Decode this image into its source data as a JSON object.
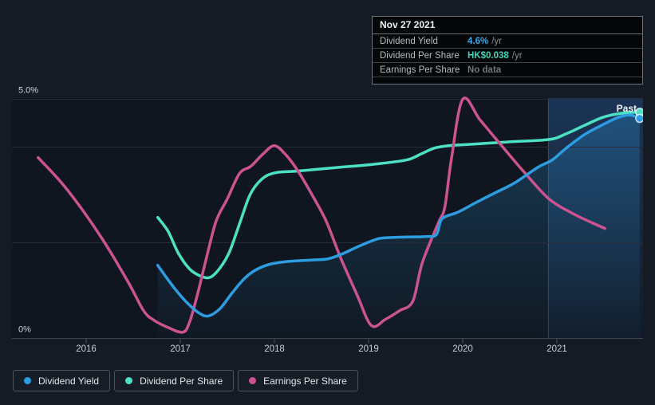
{
  "tooltip": {
    "date": "Nov 27 2021",
    "rows": [
      {
        "label": "Dividend Yield",
        "value": "4.6%",
        "suffix": "/yr",
        "value_color": "#3ba9ea"
      },
      {
        "label": "Dividend Per Share",
        "value": "HK$0.038",
        "suffix": "/yr",
        "value_color": "#40d6b9"
      },
      {
        "label": "Earnings Per Share",
        "value": "No data",
        "suffix": "",
        "value_color": "#70767d"
      }
    ]
  },
  "legend": [
    {
      "label": "Dividend Yield",
      "color": "#2d9de2"
    },
    {
      "label": "Dividend Per Share",
      "color": "#4de1c3"
    },
    {
      "label": "Earnings Per Share",
      "color": "#ca5390"
    }
  ],
  "colors": {
    "background": "#151b24",
    "plot_background": "#10161f",
    "gridline": "#262d38",
    "baseline": "#3d4450",
    "dividend_yield": "#2d9de2",
    "dividend_per_share": "#4de1c3",
    "earnings_per_share": "#ca5390",
    "past_band": "#2c64aa"
  },
  "chart_data": {
    "type": "line",
    "title": "",
    "x_axis": {
      "ticks": [
        2016,
        2017,
        2018,
        2019,
        2020,
        2021
      ],
      "min": 2015.21,
      "max": 2021.92
    },
    "y_axis": {
      "labels": [
        {
          "text": "5.0%",
          "pct": 5.0
        },
        {
          "text": "0%",
          "pct": 0.0
        }
      ],
      "gridlines_pct": [
        5.0,
        4.0,
        2.0
      ],
      "baseline_pct": 0.0,
      "ylim": [
        0,
        5.0
      ]
    },
    "past_band": {
      "from_year": 2020.91,
      "label": "Past"
    },
    "legend_position": "bottom-left",
    "series": [
      {
        "name": "Dividend Per Share",
        "color": "#4de1c3",
        "end_dot": true,
        "area_fill": false,
        "points": [
          [
            2016.76,
            2.53
          ],
          [
            2016.87,
            2.24
          ],
          [
            2016.98,
            1.78
          ],
          [
            2017.1,
            1.45
          ],
          [
            2017.22,
            1.3
          ],
          [
            2017.32,
            1.28
          ],
          [
            2017.42,
            1.47
          ],
          [
            2017.52,
            1.8
          ],
          [
            2017.63,
            2.4
          ],
          [
            2017.74,
            3.0
          ],
          [
            2017.86,
            3.32
          ],
          [
            2018.0,
            3.46
          ],
          [
            2018.25,
            3.5
          ],
          [
            2018.65,
            3.57
          ],
          [
            2019.05,
            3.64
          ],
          [
            2019.4,
            3.73
          ],
          [
            2019.55,
            3.85
          ],
          [
            2019.7,
            3.98
          ],
          [
            2019.85,
            4.03
          ],
          [
            2020.1,
            4.06
          ],
          [
            2020.5,
            4.11
          ],
          [
            2020.92,
            4.16
          ],
          [
            2021.1,
            4.28
          ],
          [
            2021.3,
            4.46
          ],
          [
            2021.5,
            4.63
          ],
          [
            2021.7,
            4.71
          ],
          [
            2021.88,
            4.73
          ]
        ]
      },
      {
        "name": "Earnings Per Share",
        "color": "#ca5390",
        "end_dot": false,
        "area_fill": false,
        "points": [
          [
            2015.49,
            3.78
          ],
          [
            2015.74,
            3.25
          ],
          [
            2015.97,
            2.66
          ],
          [
            2016.21,
            1.96
          ],
          [
            2016.46,
            1.13
          ],
          [
            2016.61,
            0.58
          ],
          [
            2016.72,
            0.38
          ],
          [
            2016.88,
            0.22
          ],
          [
            2017.03,
            0.13
          ],
          [
            2017.1,
            0.35
          ],
          [
            2017.18,
            0.9
          ],
          [
            2017.28,
            1.7
          ],
          [
            2017.38,
            2.45
          ],
          [
            2017.5,
            2.92
          ],
          [
            2017.63,
            3.45
          ],
          [
            2017.75,
            3.6
          ],
          [
            2017.88,
            3.86
          ],
          [
            2018.0,
            4.03
          ],
          [
            2018.12,
            3.84
          ],
          [
            2018.25,
            3.5
          ],
          [
            2018.4,
            3.0
          ],
          [
            2018.55,
            2.45
          ],
          [
            2018.7,
            1.7
          ],
          [
            2018.88,
            0.9
          ],
          [
            2019.03,
            0.27
          ],
          [
            2019.18,
            0.4
          ],
          [
            2019.33,
            0.58
          ],
          [
            2019.47,
            0.78
          ],
          [
            2019.57,
            1.58
          ],
          [
            2019.74,
            2.41
          ],
          [
            2019.81,
            2.75
          ],
          [
            2019.88,
            3.75
          ],
          [
            2020.0,
            5.0
          ],
          [
            2020.18,
            4.58
          ],
          [
            2020.37,
            4.13
          ],
          [
            2020.66,
            3.46
          ],
          [
            2020.92,
            2.91
          ],
          [
            2021.17,
            2.61
          ],
          [
            2021.35,
            2.44
          ],
          [
            2021.51,
            2.3
          ]
        ]
      },
      {
        "name": "Dividend Yield",
        "color": "#2d9de2",
        "end_dot": true,
        "area_fill": true,
        "points": [
          [
            2016.76,
            1.53
          ],
          [
            2016.85,
            1.28
          ],
          [
            2016.95,
            1.02
          ],
          [
            2017.07,
            0.75
          ],
          [
            2017.2,
            0.53
          ],
          [
            2017.3,
            0.47
          ],
          [
            2017.42,
            0.62
          ],
          [
            2017.55,
            0.95
          ],
          [
            2017.68,
            1.25
          ],
          [
            2017.8,
            1.43
          ],
          [
            2017.95,
            1.55
          ],
          [
            2018.15,
            1.61
          ],
          [
            2018.4,
            1.64
          ],
          [
            2018.56,
            1.66
          ],
          [
            2018.7,
            1.75
          ],
          [
            2018.9,
            1.93
          ],
          [
            2019.05,
            2.05
          ],
          [
            2019.15,
            2.1
          ],
          [
            2019.4,
            2.12
          ],
          [
            2019.6,
            2.13
          ],
          [
            2019.72,
            2.17
          ],
          [
            2019.78,
            2.5
          ],
          [
            2019.95,
            2.64
          ],
          [
            2020.15,
            2.85
          ],
          [
            2020.35,
            3.05
          ],
          [
            2020.55,
            3.25
          ],
          [
            2020.8,
            3.58
          ],
          [
            2020.95,
            3.73
          ],
          [
            2021.1,
            3.98
          ],
          [
            2021.3,
            4.27
          ],
          [
            2021.5,
            4.48
          ],
          [
            2021.65,
            4.62
          ],
          [
            2021.78,
            4.67
          ],
          [
            2021.88,
            4.6
          ]
        ]
      }
    ]
  }
}
